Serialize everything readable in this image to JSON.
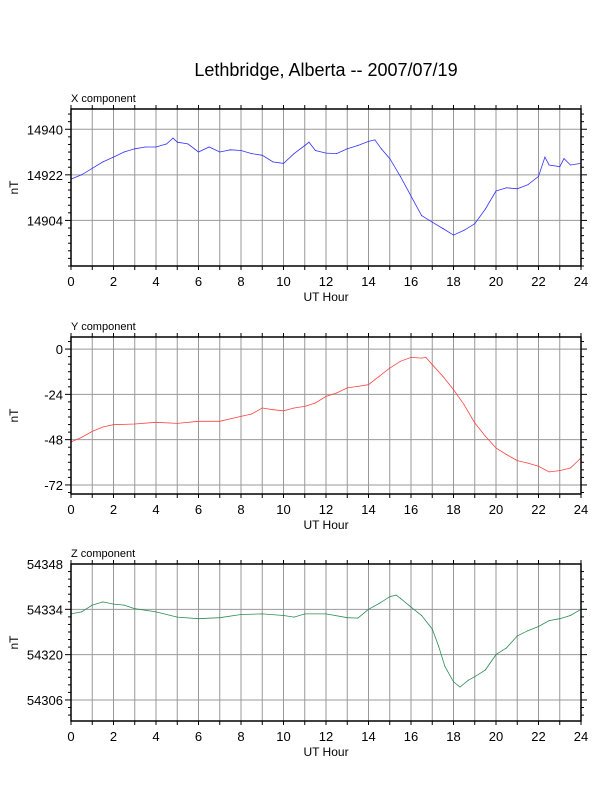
{
  "title": "Lethbridge, Alberta -- 2007/07/19",
  "chart_data": [
    {
      "type": "line",
      "panel_title": "X component",
      "xlabel": "UT Hour",
      "ylabel": "nT",
      "xlim": [
        0,
        24
      ],
      "ylim": [
        14886,
        14948
      ],
      "xticks": [
        0,
        2,
        4,
        6,
        8,
        10,
        12,
        14,
        16,
        18,
        20,
        22,
        24
      ],
      "yticks": [
        14904,
        14922,
        14940
      ],
      "grid": true,
      "color": "#3333ff",
      "x": [
        0,
        0.5,
        1,
        1.5,
        2,
        2.5,
        3,
        3.5,
        4,
        4.5,
        4.8,
        5,
        5.5,
        6,
        6.5,
        7,
        7.5,
        8,
        8.5,
        9,
        9.5,
        10,
        10.5,
        11,
        11.2,
        11.5,
        12,
        12.5,
        13,
        13.5,
        14,
        14.3,
        14.6,
        15,
        15.5,
        16,
        16.5,
        17,
        17.5,
        18,
        18.5,
        19,
        19.5,
        20,
        20.5,
        21,
        21.5,
        22,
        22.3,
        22.5,
        23,
        23.2,
        23.5,
        24
      ],
      "y": [
        14920.3,
        14922,
        14924.6,
        14927.1,
        14929,
        14931,
        14932.3,
        14933,
        14933,
        14934.2,
        14936.5,
        14934.9,
        14934.2,
        14931,
        14933,
        14931,
        14931.9,
        14931.6,
        14930.4,
        14929.7,
        14927.1,
        14926.5,
        14930.4,
        14933.6,
        14934.9,
        14931.6,
        14930.6,
        14930.4,
        14932.3,
        14933.6,
        14935.2,
        14935.8,
        14932.3,
        14928.4,
        14921.4,
        14913.6,
        14905.9,
        14903.3,
        14900.8,
        14898.2,
        14900.1,
        14902.7,
        14908.5,
        14915.6,
        14916.9,
        14916.5,
        14918.1,
        14921.4,
        14929,
        14925.9,
        14925.2,
        14928.4,
        14925.9,
        14926.5
      ]
    },
    {
      "type": "line",
      "panel_title": "Y component",
      "xlabel": "UT Hour",
      "ylabel": "nT",
      "xlim": [
        0,
        24
      ],
      "ylim": [
        -76.8,
        6.4
      ],
      "xticks": [
        0,
        2,
        4,
        6,
        8,
        10,
        12,
        14,
        16,
        18,
        20,
        22,
        24
      ],
      "yticks": [
        -72,
        -48,
        -24,
        0
      ],
      "grid": true,
      "color": "#ff4444",
      "x": [
        0,
        0.5,
        1,
        1.5,
        2,
        3,
        4,
        5,
        6,
        7,
        8,
        8.5,
        9,
        9.5,
        10,
        10.5,
        11,
        11.5,
        12,
        12.5,
        13,
        13.5,
        14,
        14.3,
        14.5,
        15,
        15.5,
        16,
        16.5,
        16.7,
        17,
        17.5,
        18,
        18.5,
        19,
        19.5,
        20,
        20.5,
        21,
        21.5,
        22,
        22.5,
        23,
        23.5,
        24
      ],
      "y": [
        -49.2,
        -46.8,
        -43.6,
        -41.3,
        -40.1,
        -39.7,
        -38.8,
        -39.4,
        -38.3,
        -38.3,
        -35.7,
        -34.4,
        -31.2,
        -32.1,
        -32.7,
        -31.2,
        -30.4,
        -28.6,
        -25.1,
        -23.3,
        -20.6,
        -19.8,
        -18.9,
        -16.2,
        -14.5,
        -10.1,
        -6.5,
        -4.4,
        -4.8,
        -4.4,
        -8.3,
        -14.5,
        -21.5,
        -29.5,
        -39.2,
        -46.2,
        -52.4,
        -55.9,
        -59.1,
        -60.4,
        -62.1,
        -65.1,
        -64.4,
        -63,
        -57.7
      ]
    },
    {
      "type": "line",
      "panel_title": "Z component",
      "xlabel": "UT Hour",
      "ylabel": "nT",
      "xlim": [
        0,
        24
      ],
      "ylim": [
        54299.5,
        54348
      ],
      "xticks": [
        0,
        2,
        4,
        6,
        8,
        10,
        12,
        14,
        16,
        18,
        20,
        22,
        24
      ],
      "yticks": [
        54306,
        54320,
        54334,
        54348
      ],
      "grid": true,
      "color": "#2e8b57",
      "x": [
        0,
        0.5,
        1,
        1.5,
        2,
        2.5,
        3,
        4,
        5,
        6,
        7,
        8,
        9,
        10,
        10.5,
        11,
        12,
        13,
        13.5,
        14,
        14.5,
        15,
        15.3,
        15.5,
        16,
        16.5,
        17,
        17.3,
        17.6,
        18,
        18.3,
        18.7,
        19,
        19.5,
        20,
        20.5,
        21,
        21.5,
        22,
        22.5,
        23,
        23.5,
        24
      ],
      "y": [
        54332.6,
        54333.2,
        54335.3,
        54336.3,
        54335.6,
        54335.3,
        54334.2,
        54333.2,
        54331.6,
        54331.1,
        54331.4,
        54332.4,
        54332.6,
        54332.1,
        54331.6,
        54332.6,
        54332.6,
        54331.4,
        54331.3,
        54334,
        54335.8,
        54337.9,
        54338.4,
        54337.4,
        54334.7,
        54332.1,
        54327.9,
        54322.6,
        54316.3,
        54311.6,
        54310,
        54312.1,
        54313.2,
        54315.3,
        54320,
        54322.1,
        54325.8,
        54327.4,
        54328.7,
        54330.5,
        54331.1,
        54332.1,
        54334
      ]
    }
  ]
}
